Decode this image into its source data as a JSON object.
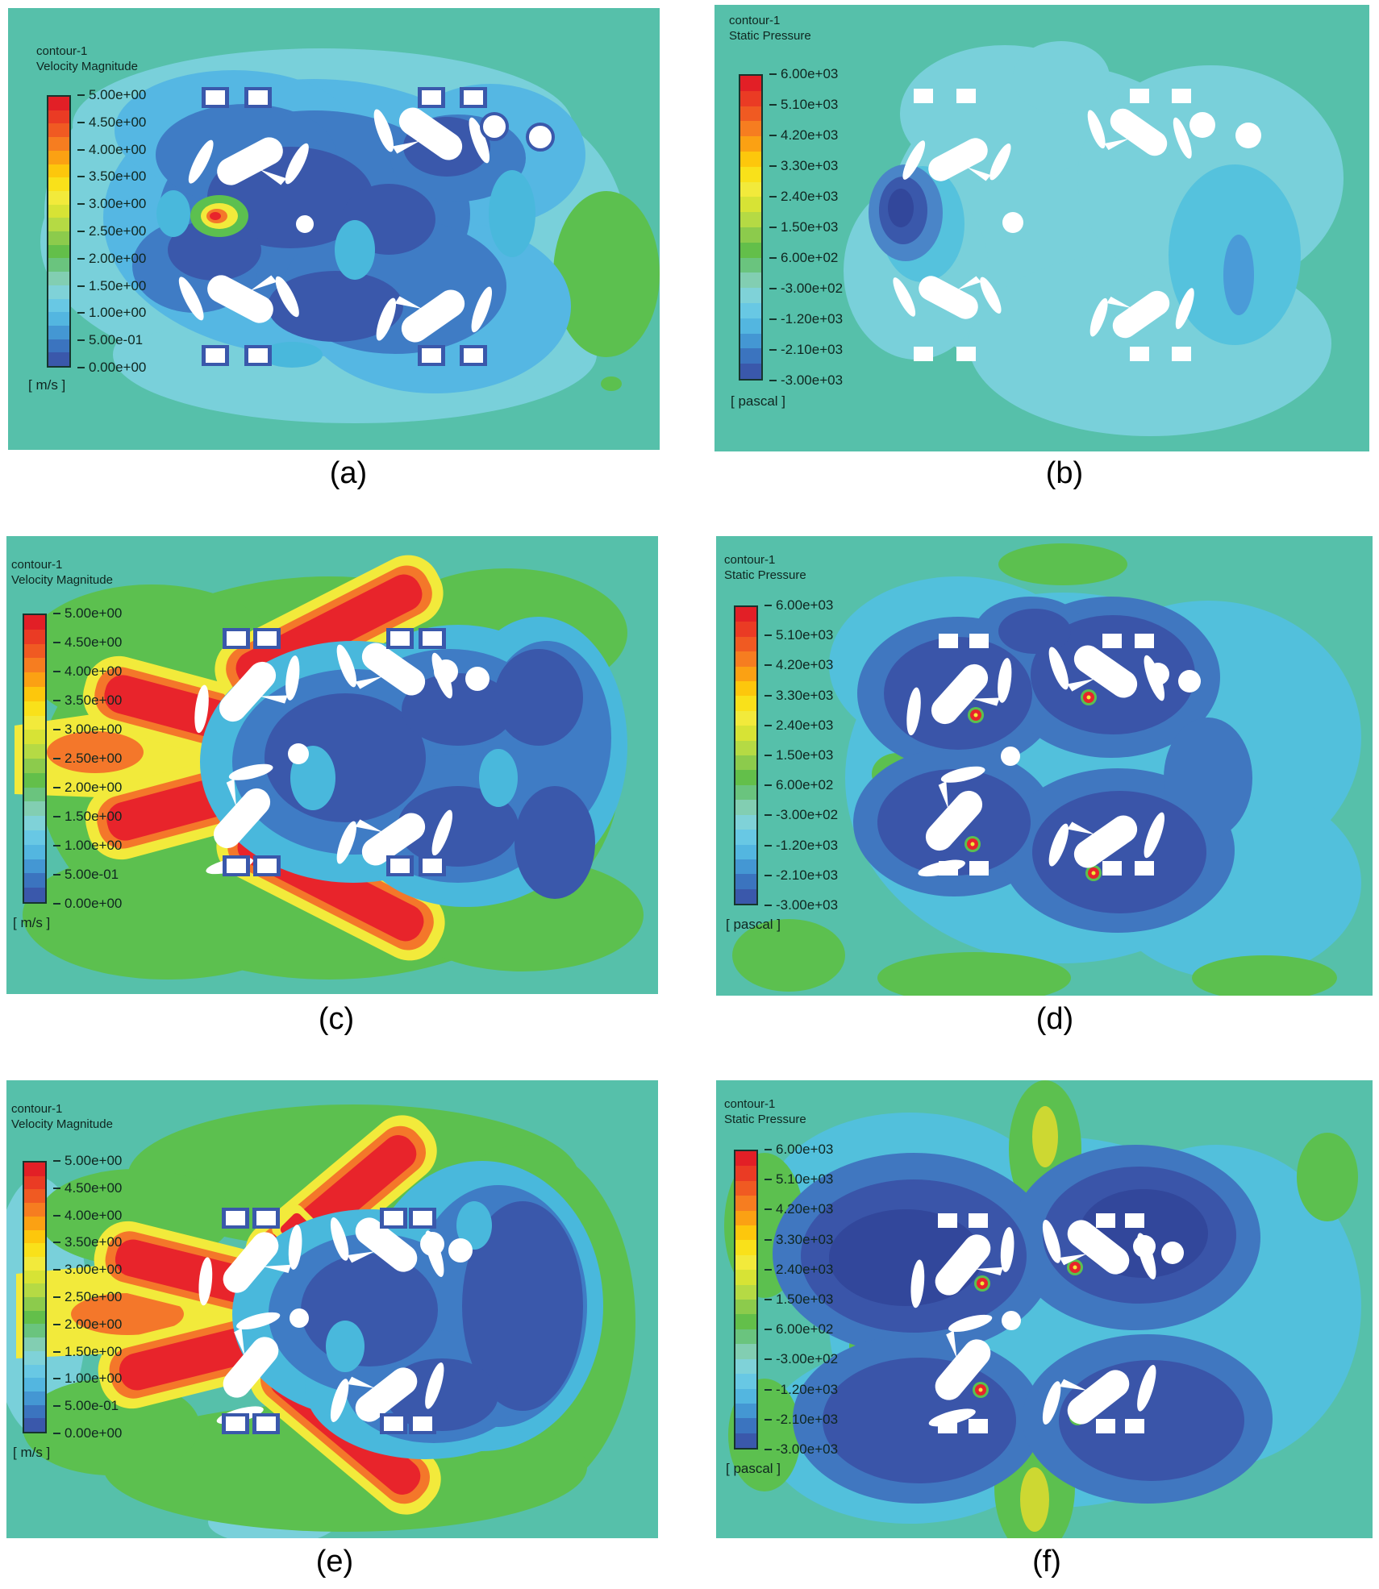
{
  "colors": {
    "page_background": "#ffffff",
    "plot_background": "#56c0aa",
    "colorbar_outline": "#16352e",
    "legend_text": "#0f2620",
    "caption_text": "#000000",
    "band_colors": [
      "#e21f26",
      "#ea3b24",
      "#f05a22",
      "#f67d20",
      "#fba113",
      "#fdc70c",
      "#f9e11a",
      "#f2ea3b",
      "#d7e335",
      "#b5da44",
      "#8ccb4c",
      "#63bf4a",
      "#6ac47e",
      "#82ceb2",
      "#7fd2d8",
      "#68c8e4",
      "#53b6e0",
      "#4497d3",
      "#3b74bf",
      "#3a58ab"
    ],
    "field_palette": {
      "teal": "#56c0aa",
      "pale_cyan": "#79d0da",
      "cyan": "#52c0dc",
      "sky_blue": "#55b7e3",
      "mid_blue": "#3f7cc5",
      "royal_blue": "#3a58ab",
      "dark_blue": "#32479b",
      "green": "#5cc04f",
      "yellow_green": "#cdd832",
      "yellow": "#f2ea3b",
      "orange": "#f4772a",
      "red": "#e8242b",
      "white": "#ffffff"
    }
  },
  "panels": [
    {
      "id": "a",
      "caption": "(a)",
      "legend": {
        "line1": "contour-1",
        "line2": "Velocity Magnitude",
        "unit": "[ m/s ]",
        "ticks": [
          "5.00e+00",
          "4.50e+00",
          "4.00e+00",
          "3.50e+00",
          "3.00e+00",
          "2.50e+00",
          "2.00e+00",
          "1.50e+00",
          "1.00e+00",
          "5.00e-01",
          "0.00e+00"
        ]
      }
    },
    {
      "id": "b",
      "caption": "(b)",
      "legend": {
        "line1": "contour-1",
        "line2": "Static Pressure",
        "unit": "[ pascal ]",
        "ticks": [
          "6.00e+03",
          "5.10e+03",
          "4.20e+03",
          "3.30e+03",
          "2.40e+03",
          "1.50e+03",
          "6.00e+02",
          "-3.00e+02",
          "-1.20e+03",
          "-2.10e+03",
          "-3.00e+03"
        ]
      }
    },
    {
      "id": "c",
      "caption": "(c)",
      "legend": {
        "line1": "contour-1",
        "line2": "Velocity Magnitude",
        "unit": "[ m/s ]",
        "ticks": [
          "5.00e+00",
          "4.50e+00",
          "4.00e+00",
          "3.50e+00",
          "3.00e+00",
          "2.50e+00",
          "2.00e+00",
          "1.50e+00",
          "1.00e+00",
          "5.00e-01",
          "0.00e+00"
        ]
      }
    },
    {
      "id": "d",
      "caption": "(d)",
      "legend": {
        "line1": "contour-1",
        "line2": "Static Pressure",
        "unit": "[ pascal ]",
        "ticks": [
          "6.00e+03",
          "5.10e+03",
          "4.20e+03",
          "3.30e+03",
          "2.40e+03",
          "1.50e+03",
          "6.00e+02",
          "-3.00e+02",
          "-1.20e+03",
          "-2.10e+03",
          "-3.00e+03"
        ]
      }
    },
    {
      "id": "e",
      "caption": "(e)",
      "legend": {
        "line1": "contour-1",
        "line2": "Velocity Magnitude",
        "unit": "[ m/s ]",
        "ticks": [
          "5.00e+00",
          "4.50e+00",
          "4.00e+00",
          "3.50e+00",
          "3.00e+00",
          "2.50e+00",
          "2.00e+00",
          "1.50e+00",
          "1.00e+00",
          "5.00e-01",
          "0.00e+00"
        ]
      }
    },
    {
      "id": "f",
      "caption": "(f)",
      "legend": {
        "line1": "contour-1",
        "line2": "Static Pressure",
        "unit": "[ pascal ]",
        "ticks": [
          "6.00e+03",
          "5.10e+03",
          "4.20e+03",
          "3.30e+03",
          "2.40e+03",
          "1.50e+03",
          "6.00e+02",
          "-3.00e+02",
          "-1.20e+03",
          "-2.10e+03",
          "-3.00e+03"
        ]
      }
    }
  ],
  "chart_data": [
    {
      "panel": "(a)",
      "type": "heatmap",
      "subtype": "cfd-contour",
      "title": "contour-1",
      "quantity": "Velocity Magnitude",
      "unit": "m/s",
      "range": [
        0,
        5
      ],
      "levels": [
        0,
        0.5,
        1.0,
        1.5,
        2.0,
        2.5,
        3.0,
        3.5,
        4.0,
        4.5,
        5.0
      ],
      "colorbar_labels_top_to_bottom": [
        "5.00e+00",
        "4.50e+00",
        "4.00e+00",
        "3.50e+00",
        "3.00e+00",
        "2.50e+00",
        "2.00e+00",
        "1.50e+00",
        "1.00e+00",
        "5.00e-01",
        "0.00e+00"
      ],
      "colormap": "rainbow",
      "legend_position": "left",
      "grid": false
    },
    {
      "panel": "(b)",
      "type": "heatmap",
      "subtype": "cfd-contour",
      "title": "contour-1",
      "quantity": "Static Pressure",
      "unit": "pascal",
      "range": [
        -3000,
        6000
      ],
      "levels": [
        -3000,
        -2100,
        -1200,
        -300,
        600,
        1500,
        2400,
        3300,
        4200,
        5100,
        6000
      ],
      "colorbar_labels_top_to_bottom": [
        "6.00e+03",
        "5.10e+03",
        "4.20e+03",
        "3.30e+03",
        "2.40e+03",
        "1.50e+03",
        "6.00e+02",
        "-3.00e+02",
        "-1.20e+03",
        "-2.10e+03",
        "-3.00e+03"
      ],
      "colormap": "rainbow",
      "legend_position": "left",
      "grid": false
    },
    {
      "panel": "(c)",
      "type": "heatmap",
      "subtype": "cfd-contour",
      "title": "contour-1",
      "quantity": "Velocity Magnitude",
      "unit": "m/s",
      "range": [
        0,
        5
      ],
      "levels": [
        0,
        0.5,
        1.0,
        1.5,
        2.0,
        2.5,
        3.0,
        3.5,
        4.0,
        4.5,
        5.0
      ],
      "colorbar_labels_top_to_bottom": [
        "5.00e+00",
        "4.50e+00",
        "4.00e+00",
        "3.50e+00",
        "3.00e+00",
        "2.50e+00",
        "2.00e+00",
        "1.50e+00",
        "1.00e+00",
        "5.00e-01",
        "0.00e+00"
      ],
      "colormap": "rainbow",
      "legend_position": "left",
      "grid": false
    },
    {
      "panel": "(d)",
      "type": "heatmap",
      "subtype": "cfd-contour",
      "title": "contour-1",
      "quantity": "Static Pressure",
      "unit": "pascal",
      "range": [
        -3000,
        6000
      ],
      "levels": [
        -3000,
        -2100,
        -1200,
        -300,
        600,
        1500,
        2400,
        3300,
        4200,
        5100,
        6000
      ],
      "colorbar_labels_top_to_bottom": [
        "6.00e+03",
        "5.10e+03",
        "4.20e+03",
        "3.30e+03",
        "2.40e+03",
        "1.50e+03",
        "6.00e+02",
        "-3.00e+02",
        "-1.20e+03",
        "-2.10e+03",
        "-3.00e+03"
      ],
      "colormap": "rainbow",
      "legend_position": "left",
      "grid": false
    },
    {
      "panel": "(e)",
      "type": "heatmap",
      "subtype": "cfd-contour",
      "title": "contour-1",
      "quantity": "Velocity Magnitude",
      "unit": "m/s",
      "range": [
        0,
        5
      ],
      "levels": [
        0,
        0.5,
        1.0,
        1.5,
        2.0,
        2.5,
        3.0,
        3.5,
        4.0,
        4.5,
        5.0
      ],
      "colorbar_labels_top_to_bottom": [
        "5.00e+00",
        "4.50e+00",
        "4.00e+00",
        "3.50e+00",
        "3.00e+00",
        "2.50e+00",
        "2.00e+00",
        "1.50e+00",
        "1.00e+00",
        "5.00e-01",
        "0.00e+00"
      ],
      "colormap": "rainbow",
      "legend_position": "left",
      "grid": false
    },
    {
      "panel": "(f)",
      "type": "heatmap",
      "subtype": "cfd-contour",
      "title": "contour-1",
      "quantity": "Static Pressure",
      "unit": "pascal",
      "range": [
        -3000,
        6000
      ],
      "levels": [
        -3000,
        -2100,
        -1200,
        -300,
        600,
        1500,
        2400,
        3300,
        4200,
        5100,
        6000
      ],
      "colorbar_labels_top_to_bottom": [
        "6.00e+03",
        "5.10e+03",
        "4.20e+03",
        "3.30e+03",
        "2.40e+03",
        "1.50e+03",
        "6.00e+02",
        "-3.00e+02",
        "-1.20e+03",
        "-2.10e+03",
        "-3.00e+03"
      ],
      "colormap": "rainbow",
      "legend_position": "left",
      "grid": false
    }
  ]
}
